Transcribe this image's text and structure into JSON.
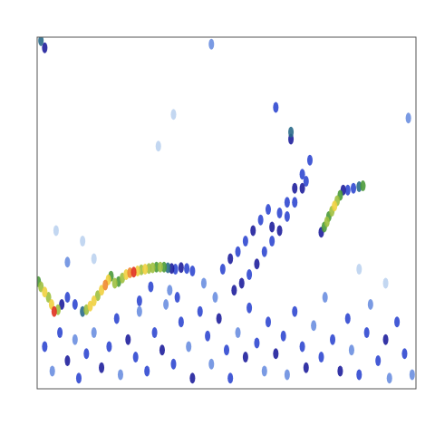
{
  "chart_data": {
    "type": "heatmap",
    "x": [
      0.3,
      1,
      2,
      3,
      3.8,
      4.5,
      5.5,
      6.5,
      8,
      10,
      12,
      13,
      14,
      15,
      16,
      17,
      18,
      18.8,
      19.5,
      20.5,
      21.5,
      22.5,
      23.5,
      24.5,
      25.5,
      26.5,
      27.5,
      28.5,
      29.5,
      30.5,
      31.5,
      32.5,
      33.5,
      34.5,
      35.5,
      36.5,
      38,
      39.5,
      41,
      75,
      75.8,
      76.5,
      77,
      77.8,
      78.5,
      79.2,
      80,
      80.8,
      82,
      83.5,
      85,
      86,
      49,
      51,
      53,
      55,
      57,
      59,
      61,
      52,
      54,
      56,
      58,
      60,
      62,
      64,
      66,
      68,
      70,
      71,
      62,
      64,
      66,
      68,
      70,
      72,
      1,
      2,
      46,
      63,
      67,
      67,
      98,
      36,
      32,
      2,
      4,
      6,
      8,
      10,
      11,
      13,
      15,
      17,
      19,
      21,
      22,
      24,
      26,
      27,
      29,
      31,
      33,
      34,
      36,
      38,
      40,
      41,
      43,
      45,
      46,
      48,
      50,
      51,
      53,
      55,
      56,
      58,
      60,
      61,
      63,
      65,
      66,
      68,
      70,
      71,
      73,
      75,
      76,
      78,
      80,
      82,
      83,
      85,
      87,
      88,
      90,
      92,
      93,
      95,
      97,
      99,
      35,
      44,
      8,
      12,
      27,
      30,
      37,
      47,
      92,
      85,
      15,
      5
    ],
    "y": [
      69.5,
      71,
      72.5,
      74,
      76,
      78,
      77.5,
      76,
      74,
      76,
      78,
      77.5,
      76.5,
      75,
      73.5,
      72,
      70.5,
      69,
      68,
      70,
      69.5,
      68.5,
      67.5,
      67,
      66.8,
      66.5,
      66.2,
      66,
      65.8,
      65.6,
      65.4,
      65.4,
      65.4,
      65.6,
      65.8,
      66,
      65.5,
      65.8,
      66.5,
      55.5,
      54,
      52.5,
      51,
      49.5,
      48,
      46.5,
      45,
      43.5,
      43.5,
      43,
      42.5,
      42.3,
      66,
      63,
      61,
      58,
      55,
      52,
      49,
      72,
      70,
      67.5,
      64.5,
      61,
      58,
      55,
      51,
      47,
      43,
      41,
      54,
      50,
      47,
      43,
      39,
      35,
      1,
      3,
      2,
      20,
      27,
      29,
      23,
      22,
      31,
      88,
      95,
      84,
      92,
      86,
      97,
      90,
      84,
      94,
      88,
      80,
      96,
      86,
      91,
      78,
      95,
      84,
      89,
      76,
      93,
      81,
      88,
      97,
      78,
      85,
      93,
      80,
      89,
      97,
      84,
      91,
      77,
      87,
      95,
      81,
      90,
      85,
      96,
      78,
      88,
      94,
      82,
      91,
      74,
      86,
      95,
      80,
      89,
      96,
      84,
      76,
      92,
      86,
      97,
      81,
      90,
      96,
      72,
      70,
      64,
      58,
      75,
      71,
      74,
      74,
      70,
      66,
      63,
      55
    ],
    "values": [
      6,
      7,
      8,
      7,
      8,
      10,
      7,
      4,
      3,
      3,
      5,
      7,
      8,
      8,
      7,
      8,
      9,
      8,
      6,
      7,
      6,
      7,
      8,
      9,
      10,
      8,
      7,
      8,
      7,
      7,
      6,
      7,
      6,
      5,
      4,
      3,
      4,
      3,
      3,
      4,
      6,
      7,
      6,
      7,
      8,
      7,
      6,
      4,
      3,
      3,
      5,
      6,
      3,
      4,
      3,
      3,
      4,
      3,
      3,
      4,
      4,
      3,
      4,
      3,
      3,
      4,
      3,
      3,
      4,
      3,
      4,
      3,
      3,
      4,
      3,
      3,
      5,
      4,
      2,
      3,
      5,
      4,
      2,
      1,
      1,
      3,
      2,
      3,
      4,
      2,
      3,
      3,
      2,
      4,
      3,
      3,
      2,
      4,
      3,
      2,
      3,
      3,
      4,
      2,
      3,
      3,
      2,
      4,
      3,
      3,
      2,
      4,
      3,
      3,
      2,
      4,
      3,
      3,
      2,
      3,
      4,
      3,
      2,
      3,
      3,
      4,
      2,
      3,
      2,
      3,
      4,
      3,
      2,
      3,
      3,
      2,
      3,
      4,
      2,
      3,
      3,
      2,
      2,
      2,
      2,
      1,
      3,
      3,
      3,
      2,
      1,
      1,
      1,
      1
    ],
    "xlim": [
      0,
      100
    ],
    "ylim": [
      0,
      100
    ],
    "zlim": [
      0,
      10
    ],
    "tick_labels": false,
    "grid": false
  }
}
